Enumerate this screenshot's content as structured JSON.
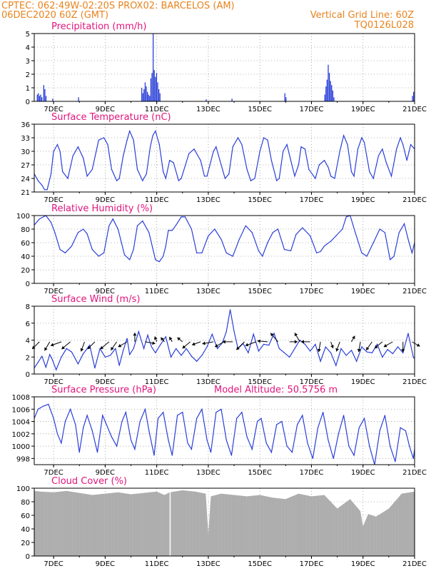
{
  "header": {
    "line1_left": "CPTEC:  062:49W-02:20S  PROX02: BARCELOS (AM)",
    "line2_left": "06DEC2020 60Z (GMT)",
    "line2_right": "Vertical Grid Line: 60Z",
    "line3_right": "TQ0126L028"
  },
  "colors": {
    "header": "#e8831e",
    "title": "#e0157c",
    "series": "#2a3fd8",
    "cloud": "#a9a9a9",
    "grid": "#9a9a9a"
  },
  "x_axis": {
    "start_day": 6.25,
    "end_day": 21.0,
    "tick_days": [
      7,
      9,
      11,
      13,
      15,
      17,
      19,
      21
    ],
    "tick_labels": [
      "7DEC",
      "9DEC",
      "11DEC",
      "13DEC",
      "15DEC",
      "17DEC",
      "19DEC",
      "21DEC"
    ]
  },
  "chart_data": [
    {
      "id": "precip",
      "type": "bar",
      "title": "Precipitation (mm/h)",
      "ylim": [
        0,
        5
      ],
      "yticks": [
        0,
        1,
        2,
        3,
        4,
        5
      ],
      "grid": true,
      "events": [
        {
          "day": 6.35,
          "values": [
            0.5,
            0.6,
            0.4,
            0.5,
            0.3
          ]
        },
        {
          "day": 6.6,
          "values": [
            1.2,
            0.9,
            0.4
          ]
        },
        {
          "day": 6.95,
          "values": [
            0.2
          ]
        },
        {
          "day": 7.95,
          "values": [
            0.3
          ]
        },
        {
          "day": 10.4,
          "values": [
            1.0,
            0.6,
            0.9,
            1.4,
            1.1,
            0.7,
            0.5,
            0.4,
            1.7,
            2.1,
            5.0,
            2.3,
            1.8,
            2.1,
            1.4,
            0.9,
            0.6
          ]
        },
        {
          "day": 12.9,
          "values": [
            0.15
          ]
        },
        {
          "day": 13.9,
          "values": [
            0.2
          ]
        },
        {
          "day": 15.95,
          "values": [
            0.6,
            0.3
          ]
        },
        {
          "day": 17.5,
          "values": [
            0.5,
            1.1,
            1.6,
            2.7,
            2.1,
            1.5,
            1.2,
            0.8,
            0.3
          ]
        },
        {
          "day": 20.9,
          "values": [
            0.4,
            0.7,
            0.9,
            1.3
          ]
        }
      ]
    },
    {
      "id": "temp",
      "type": "line",
      "title": "Surface Temperature (nC)",
      "ylim": [
        21,
        36
      ],
      "yticks": [
        21,
        24,
        27,
        30,
        33,
        36
      ],
      "grid": true,
      "x": [
        6.25,
        6.4,
        6.55,
        6.65,
        6.75,
        6.9,
        7.0,
        7.15,
        7.25,
        7.35,
        7.55,
        7.75,
        7.95,
        8.15,
        8.3,
        8.5,
        8.75,
        8.95,
        9.1,
        9.25,
        9.45,
        9.55,
        9.7,
        9.85,
        9.95,
        10.1,
        10.25,
        10.45,
        10.6,
        10.75,
        10.85,
        10.95,
        11.1,
        11.25,
        11.35,
        11.5,
        11.65,
        11.85,
        11.95,
        12.25,
        12.45,
        12.7,
        12.85,
        12.95,
        13.2,
        13.3,
        13.45,
        13.65,
        13.8,
        13.95,
        14.15,
        14.3,
        14.5,
        14.65,
        14.8,
        15.0,
        15.15,
        15.3,
        15.45,
        15.65,
        15.75,
        15.9,
        16.05,
        16.2,
        16.35,
        16.5,
        16.6,
        16.75,
        16.9,
        17.15,
        17.3,
        17.5,
        17.65,
        17.75,
        17.9,
        18.1,
        18.25,
        18.4,
        18.55,
        18.65,
        18.8,
        18.95,
        19.05,
        19.25,
        19.4,
        19.6,
        19.75,
        19.9,
        20.1,
        20.3,
        20.45,
        20.55,
        20.7,
        20.85,
        21.0
      ],
      "values": [
        25,
        23.5,
        22.5,
        21.5,
        21.5,
        25,
        30,
        31.5,
        30,
        25.5,
        24,
        29,
        31,
        28.5,
        24.5,
        26,
        32.5,
        33,
        31.5,
        26,
        23.5,
        24,
        29,
        32.5,
        34.5,
        32.5,
        26,
        23.5,
        25,
        31,
        33.5,
        34.5,
        31.5,
        25.5,
        24,
        28,
        27.5,
        23.5,
        24,
        29.5,
        30.5,
        28,
        24.5,
        24.5,
        30,
        31,
        28,
        24,
        25,
        31,
        33,
        31.5,
        26,
        23.5,
        24,
        30,
        33,
        32.5,
        28,
        23.5,
        24,
        30,
        31.5,
        28,
        24.5,
        27,
        31,
        30.5,
        26,
        24,
        27,
        28,
        26.5,
        24.5,
        24,
        30,
        33.5,
        31.5,
        25.5,
        24.5,
        30.5,
        33,
        32,
        25.5,
        24,
        29,
        30.5,
        27.5,
        24.5,
        30.5,
        33,
        31.5,
        28,
        31.5,
        30.5
      ]
    },
    {
      "id": "rh",
      "type": "line",
      "title": "Relative Humidity (%)",
      "ylim": [
        0,
        100
      ],
      "yticks": [
        0,
        20,
        40,
        60,
        80,
        100
      ],
      "grid": true,
      "x": [
        6.25,
        6.45,
        6.7,
        6.9,
        7.05,
        7.25,
        7.45,
        7.7,
        7.95,
        8.15,
        8.3,
        8.5,
        8.75,
        8.95,
        9.15,
        9.3,
        9.5,
        9.75,
        9.95,
        10.1,
        10.25,
        10.45,
        10.7,
        10.95,
        11.1,
        11.25,
        11.35,
        11.45,
        11.6,
        11.75,
        11.95,
        12.1,
        12.35,
        12.55,
        12.75,
        13.0,
        13.25,
        13.5,
        13.7,
        13.95,
        14.2,
        14.45,
        14.7,
        14.95,
        15.1,
        15.3,
        15.5,
        15.7,
        15.95,
        16.2,
        16.4,
        16.65,
        16.95,
        17.2,
        17.35,
        17.5,
        17.6,
        17.75,
        17.95,
        18.2,
        18.35,
        18.5,
        18.7,
        18.95,
        19.15,
        19.4,
        19.65,
        19.85,
        20.05,
        20.2,
        20.4,
        20.6,
        20.75,
        20.9,
        21.0
      ],
      "values": [
        86,
        95,
        100,
        90,
        75,
        50,
        45,
        55,
        75,
        80,
        73,
        50,
        40,
        45,
        85,
        95,
        80,
        42,
        35,
        50,
        85,
        92,
        75,
        35,
        32,
        40,
        55,
        78,
        78,
        86,
        98,
        98,
        80,
        45,
        45,
        70,
        80,
        65,
        45,
        40,
        65,
        85,
        75,
        48,
        40,
        60,
        75,
        80,
        50,
        48,
        72,
        82,
        70,
        45,
        47,
        55,
        58,
        62,
        70,
        80,
        98,
        100,
        75,
        45,
        40,
        60,
        80,
        75,
        35,
        40,
        75,
        88,
        65,
        45,
        60
      ]
    },
    {
      "id": "wind",
      "type": "line",
      "title": "Surface Wind (m/s)",
      "ylim": [
        0,
        8
      ],
      "yticks": [
        0,
        2,
        4,
        6,
        8
      ],
      "grid": true,
      "x": [
        6.25,
        6.4,
        6.55,
        6.7,
        6.85,
        6.95,
        7.1,
        7.3,
        7.5,
        7.7,
        7.95,
        8.15,
        8.4,
        8.6,
        8.8,
        9.0,
        9.2,
        9.4,
        9.55,
        9.7,
        9.85,
        9.95,
        10.1,
        10.3,
        10.5,
        10.65,
        10.8,
        10.95,
        11.15,
        11.35,
        11.55,
        11.75,
        11.95,
        12.15,
        12.35,
        12.55,
        12.75,
        12.95,
        13.15,
        13.35,
        13.55,
        13.7,
        13.85,
        14.0,
        14.15,
        14.35,
        14.55,
        14.75,
        14.95,
        15.15,
        15.35,
        15.55,
        15.75,
        15.95,
        16.15,
        16.35,
        16.55,
        16.75,
        16.95,
        17.15,
        17.35,
        17.55,
        17.75,
        17.95,
        18.15,
        18.35,
        18.55,
        18.75,
        18.95,
        19.15,
        19.35,
        19.55,
        19.75,
        19.95,
        20.15,
        20.35,
        20.55,
        20.75,
        20.95,
        21.0
      ],
      "values": [
        0.7,
        1.4,
        2.1,
        0.8,
        2.3,
        1.7,
        0.5,
        2.0,
        3.0,
        2.6,
        1.2,
        2.4,
        3.4,
        0.7,
        3.0,
        2.0,
        2.2,
        3.0,
        1.0,
        2.8,
        4.2,
        2.3,
        3.0,
        5.0,
        3.0,
        4.6,
        3.2,
        2.5,
        3.5,
        4.4,
        2.0,
        3.0,
        2.2,
        3.0,
        2.1,
        1.5,
        2.2,
        3.2,
        4.7,
        3.0,
        3.7,
        5.0,
        7.6,
        5.0,
        3.0,
        3.6,
        2.5,
        4.7,
        2.7,
        3.5,
        3.4,
        4.8,
        3.0,
        2.5,
        2.0,
        3.0,
        4.0,
        3.5,
        2.7,
        3.5,
        1.5,
        3.2,
        2.5,
        1.0,
        3.0,
        2.2,
        2.8,
        1.5,
        3.2,
        2.6,
        2.5,
        3.5,
        2.0,
        2.9,
        2.4,
        3.2,
        2.5,
        4.8,
        2.0,
        1.8
      ],
      "arrow_level": 3.8,
      "arrows": [
        {
          "day": 6.45,
          "dir_deg": 225,
          "len": 0.9
        },
        {
          "day": 6.85,
          "dir_deg": 210,
          "len": 0.9
        },
        {
          "day": 7.3,
          "dir_deg": 250,
          "len": 1.0
        },
        {
          "day": 7.65,
          "dir_deg": 230,
          "len": 1.0
        },
        {
          "day": 8.2,
          "dir_deg": 200,
          "len": 0.9
        },
        {
          "day": 8.6,
          "dir_deg": 225,
          "len": 0.9
        },
        {
          "day": 9.15,
          "dir_deg": 230,
          "len": 1.0
        },
        {
          "day": 9.45,
          "dir_deg": 215,
          "len": 0.9
        },
        {
          "day": 9.85,
          "dir_deg": 240,
          "len": 0.9
        },
        {
          "day": 10.15,
          "dir_deg": 0,
          "len": 0.8
        },
        {
          "day": 10.55,
          "dir_deg": 100,
          "len": 0.9
        },
        {
          "day": 11.0,
          "dir_deg": 340,
          "len": 0.5
        },
        {
          "day": 11.3,
          "dir_deg": 320,
          "len": 0.5
        },
        {
          "day": 11.6,
          "dir_deg": 330,
          "len": 0.5
        },
        {
          "day": 12.0,
          "dir_deg": 310,
          "len": 0.6
        },
        {
          "day": 12.3,
          "dir_deg": 230,
          "len": 0.9
        },
        {
          "day": 12.7,
          "dir_deg": 250,
          "len": 0.8
        },
        {
          "day": 13.2,
          "dir_deg": 260,
          "len": 1.0
        },
        {
          "day": 13.6,
          "dir_deg": 240,
          "len": 0.9
        },
        {
          "day": 13.95,
          "dir_deg": 270,
          "len": 0.9
        },
        {
          "day": 14.4,
          "dir_deg": 225,
          "len": 1.0
        },
        {
          "day": 14.85,
          "dir_deg": 250,
          "len": 1.0
        },
        {
          "day": 15.3,
          "dir_deg": 275,
          "len": 0.9
        },
        {
          "day": 15.7,
          "dir_deg": 320,
          "len": 1.0
        },
        {
          "day": 16.15,
          "dir_deg": 90,
          "len": 0.7
        },
        {
          "day": 16.55,
          "dir_deg": 330,
          "len": 0.9
        },
        {
          "day": 16.95,
          "dir_deg": 270,
          "len": 0.8
        },
        {
          "day": 17.35,
          "dir_deg": 190,
          "len": 0.9
        },
        {
          "day": 17.75,
          "dir_deg": 160,
          "len": 0.6
        },
        {
          "day": 18.1,
          "dir_deg": 200,
          "len": 0.9
        },
        {
          "day": 18.55,
          "dir_deg": 30,
          "len": 0.6
        },
        {
          "day": 18.9,
          "dir_deg": 190,
          "len": 0.9
        },
        {
          "day": 19.35,
          "dir_deg": 215,
          "len": 0.9
        },
        {
          "day": 19.75,
          "dir_deg": 230,
          "len": 0.9
        },
        {
          "day": 20.15,
          "dir_deg": 240,
          "len": 0.9
        },
        {
          "day": 20.55,
          "dir_deg": 180,
          "len": 0.9
        },
        {
          "day": 20.9,
          "dir_deg": 120,
          "len": 0.8
        }
      ]
    },
    {
      "id": "pres",
      "type": "line",
      "title": "Surface Pressure (hPa)",
      "annotation": "Model Altitude: 50.5756 m",
      "ylim": [
        997,
        1008
      ],
      "yticks": [
        998,
        1000,
        1002,
        1004,
        1006,
        1008
      ],
      "grid": true,
      "x": [
        6.25,
        6.4,
        6.6,
        6.8,
        7.0,
        7.15,
        7.3,
        7.45,
        7.65,
        7.85,
        8.0,
        8.15,
        8.3,
        8.5,
        8.7,
        8.9,
        9.05,
        9.25,
        9.45,
        9.65,
        9.8,
        10.0,
        10.15,
        10.35,
        10.55,
        10.7,
        10.9,
        11.05,
        11.25,
        11.45,
        11.6,
        11.8,
        12.0,
        12.2,
        12.35,
        12.55,
        12.75,
        12.95,
        13.1,
        13.3,
        13.5,
        13.7,
        13.9,
        14.1,
        14.3,
        14.5,
        14.7,
        14.9,
        15.05,
        15.25,
        15.45,
        15.65,
        15.85,
        16.05,
        16.25,
        16.45,
        16.65,
        16.85,
        17.05,
        17.25,
        17.45,
        17.65,
        17.85,
        18.05,
        18.25,
        18.45,
        18.65,
        18.85,
        19.05,
        19.25,
        19.45,
        19.65,
        19.85,
        20.05,
        20.25,
        20.45,
        20.65,
        20.8,
        20.95,
        21.0
      ],
      "values": [
        1004.5,
        1006,
        1006.5,
        1006.8,
        1004.5,
        1002,
        1000.5,
        1004,
        1006,
        1003.5,
        999,
        1003,
        1005,
        1002.5,
        999,
        1005,
        1003.5,
        1001.5,
        1000,
        1004,
        1005.5,
        1001,
        999.5,
        1004,
        1006,
        1002.5,
        998.5,
        1004.5,
        1005.5,
        1001,
        998.5,
        1005,
        1005.5,
        1000.5,
        999.5,
        1004.5,
        1006,
        1001,
        999,
        1005.5,
        1006,
        1001,
        998.5,
        1004.5,
        1005.5,
        1001.5,
        999.5,
        1004,
        1004.5,
        1000.5,
        999,
        1003.5,
        1004,
        1000,
        999,
        1003.5,
        1005,
        1000.5,
        998,
        1003,
        1005.5,
        1001,
        998,
        1002,
        1005,
        1000,
        998.5,
        1003,
        1004.5,
        1000,
        997,
        1002.5,
        1005,
        1000,
        997.5,
        1003,
        1002.5,
        1000,
        998,
        999.5
      ]
    },
    {
      "id": "cloud",
      "type": "area",
      "title": "Cloud Cover (%)",
      "ylim": [
        0,
        100
      ],
      "yticks": [
        0,
        20,
        40,
        60,
        80,
        100
      ],
      "grid": true,
      "x": [
        6.25,
        6.5,
        7.0,
        7.5,
        8.0,
        8.5,
        9.0,
        9.5,
        10.0,
        10.5,
        11.0,
        11.3,
        11.5,
        12.0,
        12.5,
        12.9,
        13.0,
        13.1,
        13.5,
        14.0,
        14.5,
        15.0,
        15.5,
        16.0,
        16.5,
        17.0,
        17.5,
        18.0,
        18.5,
        18.9,
        19.0,
        19.2,
        19.5,
        20.0,
        20.5,
        21.0
      ],
      "values": [
        96,
        95,
        94,
        96,
        93,
        90,
        92,
        94,
        91,
        93,
        95,
        90,
        94,
        97,
        95,
        92,
        32,
        88,
        92,
        90,
        88,
        90,
        86,
        84,
        92,
        88,
        90,
        70,
        84,
        66,
        44,
        62,
        58,
        70,
        92,
        95
      ],
      "gaps": [
        11.52
      ]
    }
  ]
}
